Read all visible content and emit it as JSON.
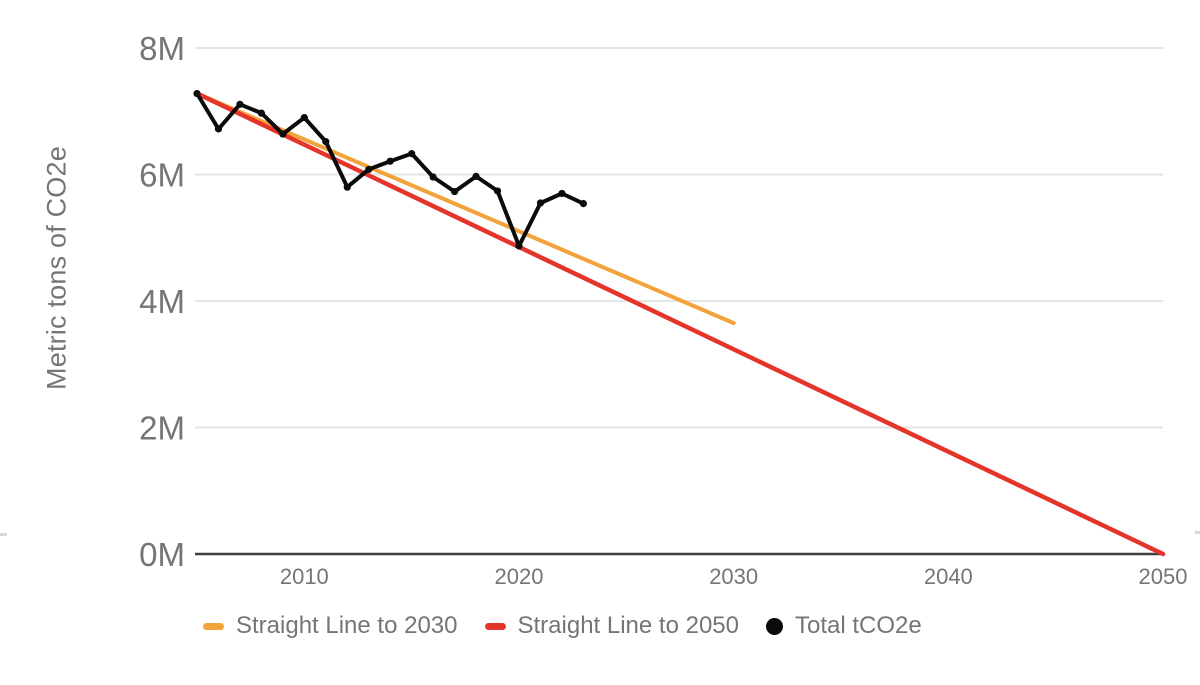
{
  "chart_data": {
    "type": "line",
    "title": "",
    "xlabel": "",
    "ylabel": "Metric tons of CO2e",
    "x_ticks": [
      "2010",
      "2020",
      "2030",
      "2040",
      "2050"
    ],
    "x_tick_values": [
      2010,
      2020,
      2030,
      2040,
      2050
    ],
    "y_ticks": [
      "0M",
      "2M",
      "4M",
      "6M",
      "8M"
    ],
    "y_tick_values": [
      0,
      2000000,
      4000000,
      6000000,
      8000000
    ],
    "xlim": [
      2005,
      2050
    ],
    "ylim": [
      0,
      8000000
    ],
    "grid": true,
    "legend_position": "bottom",
    "colors": {
      "gridline": "#e4e4e4",
      "axis_line": "#3f3f3f",
      "tick_text": "#757575",
      "orange": "#f2a33a",
      "red": "#e5352b",
      "black": "#0b0b0b"
    },
    "series": [
      {
        "name": "Straight Line to 2030",
        "type": "line",
        "color": "#f2a33a",
        "marker": "none",
        "x": [
          2005,
          2030
        ],
        "values": [
          7280000,
          3650000
        ]
      },
      {
        "name": "Straight Line to 2050",
        "type": "line",
        "color": "#e5352b",
        "marker": "none",
        "x": [
          2005,
          2050
        ],
        "values": [
          7280000,
          0
        ]
      },
      {
        "name": "Total tCO2e",
        "type": "line",
        "color": "#0b0b0b",
        "marker": "circle",
        "x": [
          2005,
          2006,
          2007,
          2008,
          2009,
          2010,
          2011,
          2012,
          2013,
          2014,
          2015,
          2016,
          2017,
          2018,
          2019,
          2020,
          2021,
          2022,
          2023
        ],
        "values": [
          7280000,
          6720000,
          7110000,
          6970000,
          6640000,
          6900000,
          6520000,
          5800000,
          6080000,
          6210000,
          6330000,
          5960000,
          5730000,
          5970000,
          5740000,
          4870000,
          5550000,
          5700000,
          5540000
        ]
      }
    ]
  }
}
